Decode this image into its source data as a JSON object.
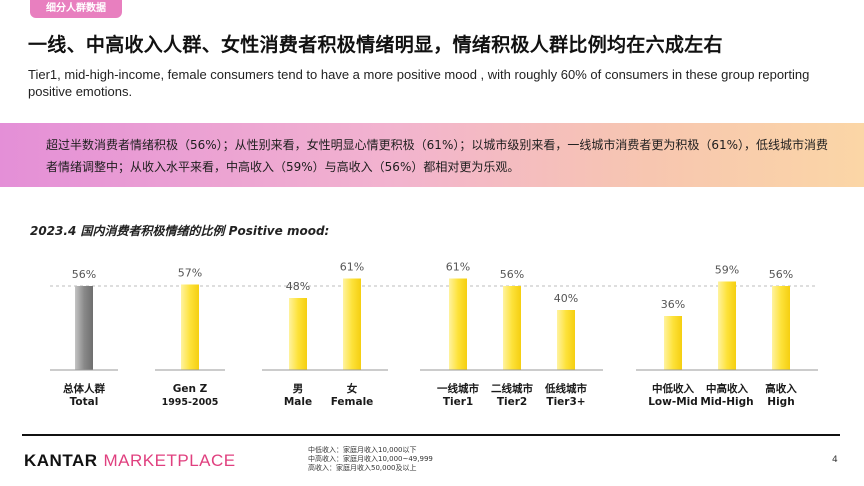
{
  "tag": "细分人群数据",
  "title": "一线、中高收入人群、女性消费者积极情绪明显，情绪积极人群比例均在六成左右",
  "subtitle": "Tier1, mid-high-income, female consumers tend to have a more positive mood , with roughly 60% of consumers in these group reporting positive emotions.",
  "banner_text": "超过半数消费者情绪积极（56%）；从性别来看，女性明显心情更积极（61%）；以城市级别来看，一线城市消费者更为积极（61%），低线城市消费者情绪调整中；从收入水平来看，中高收入（59%）与高收入（56%）都相对更为乐观。",
  "chart_data": {
    "type": "bar",
    "title": "2023.4 国内消费者积极情绪的比例 Positive mood:",
    "categories": [
      {
        "label": "总体人群",
        "sub": "Total"
      },
      {
        "label": "Gen Z",
        "sub": "1995-2005"
      },
      {
        "label": "男",
        "sub": "Male"
      },
      {
        "label": "女",
        "sub": "Female"
      },
      {
        "label": "一线城市",
        "sub": "Tier1"
      },
      {
        "label": "二线城市",
        "sub": "Tier2"
      },
      {
        "label": "低线城市",
        "sub": "Tier3+"
      },
      {
        "label": "中低收入",
        "sub": "Low-Mid"
      },
      {
        "label": "中高收入",
        "sub": "Mid-High"
      },
      {
        "label": "高收入",
        "sub": "High"
      }
    ],
    "values": [
      56,
      57,
      48,
      61,
      61,
      56,
      40,
      36,
      59,
      56
    ],
    "value_labels": [
      "56%",
      "57%",
      "48%",
      "61%",
      "61%",
      "56%",
      "40%",
      "36%",
      "59%",
      "56%"
    ],
    "reference_line": 56,
    "ylim": [
      0,
      70
    ],
    "colors": {
      "total": "#8a8a8a",
      "bar": "#fde23a"
    }
  },
  "footer": {
    "logo_kantar": "KANTAR",
    "logo_marketplace": "MARKETPLACE",
    "notes": [
      "中低收入：家庭月收入10,000以下",
      "中高收入：家庭月收入10,000~49,999",
      "高收入：家庭月收入50,000及以上"
    ],
    "page_number": "4"
  }
}
